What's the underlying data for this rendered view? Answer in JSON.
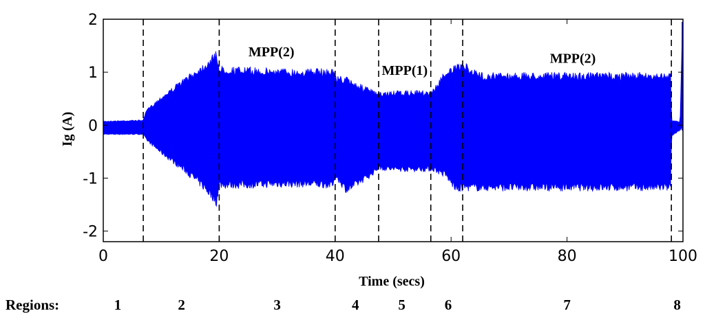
{
  "chart_data": {
    "type": "area",
    "xlabel": "Time (secs)",
    "ylabel": "Ig (A)",
    "xlim": [
      0,
      100
    ],
    "ylim": [
      -2.2,
      2
    ],
    "xticks": [
      0,
      20,
      40,
      60,
      80,
      100
    ],
    "yticks": [
      -2,
      -1,
      0,
      1,
      2
    ],
    "grid": false,
    "series_color": "#0000ff",
    "envelope": {
      "x": [
        0,
        6.9,
        7.5,
        10,
        14,
        17,
        19,
        19.5,
        20,
        25,
        30,
        35,
        39.8,
        40,
        42,
        44,
        46,
        47.5,
        50,
        56.5,
        57,
        59,
        61,
        62,
        65,
        80,
        97.9,
        98,
        99.5,
        99.9,
        100
      ],
      "upper": [
        0.08,
        0.1,
        0.3,
        0.55,
        0.9,
        1.15,
        1.35,
        1.45,
        1.12,
        1.1,
        1.08,
        1.07,
        1.08,
        0.95,
        0.92,
        0.8,
        0.7,
        0.62,
        0.65,
        0.66,
        0.7,
        1.05,
        1.15,
        1.2,
        1.0,
        1.0,
        1.0,
        0.1,
        0.07,
        1.95,
        1.95
      ],
      "lower": [
        -0.18,
        -0.18,
        -0.3,
        -0.55,
        -0.9,
        -1.2,
        -1.45,
        -1.55,
        -1.2,
        -1.2,
        -1.18,
        -1.18,
        -1.2,
        -1.0,
        -1.3,
        -1.15,
        -1.0,
        -0.85,
        -0.88,
        -0.88,
        -0.88,
        -1.0,
        -1.3,
        -1.25,
        -1.25,
        -1.25,
        -1.25,
        -0.22,
        -0.1,
        -0.1,
        -0.1
      ]
    },
    "region_boundaries": [
      6.9,
      20,
      40,
      47.5,
      56.5,
      62,
      98
    ],
    "annotations": [
      {
        "text": "MPP(2)",
        "x": 29,
        "y": 1.3
      },
      {
        "text": "MPP(1)",
        "x": 52,
        "y": 0.95
      },
      {
        "text": "MPP(2)",
        "x": 81,
        "y": 1.18
      }
    ],
    "regions_title": "Regions:",
    "regions": [
      {
        "label": "1",
        "x": 2.5
      },
      {
        "label": "2",
        "x": 13.5
      },
      {
        "label": "3",
        "x": 30
      },
      {
        "label": "4",
        "x": 43.5
      },
      {
        "label": "5",
        "x": 51.5
      },
      {
        "label": "6",
        "x": 59.5
      },
      {
        "label": "7",
        "x": 80
      },
      {
        "label": "8",
        "x": 99
      }
    ]
  }
}
